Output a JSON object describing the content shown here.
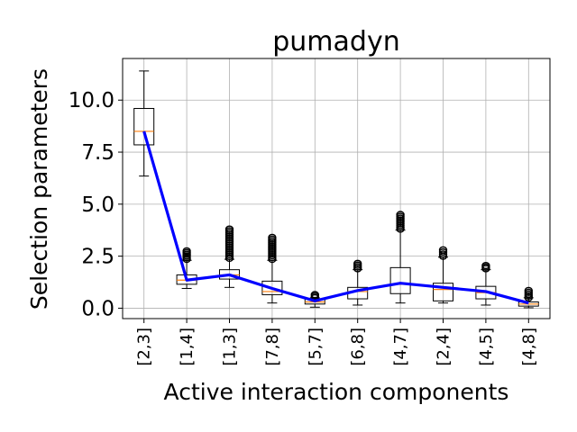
{
  "chart_data": {
    "type": "box",
    "title": "pumadyn",
    "xlabel": "Active interaction components",
    "ylabel": "Selection parameters",
    "categories": [
      "[2,3]",
      "[1,4]",
      "[1,3]",
      "[7,8]",
      "[5,7]",
      "[6,8]",
      "[4,7]",
      "[2,4]",
      "[4,5]",
      "[4,8]"
    ],
    "ylim": [
      -0.5,
      12.0
    ],
    "yticks": [
      0.0,
      2.5,
      5.0,
      7.5,
      10.0
    ],
    "ytick_labels": [
      "0.0",
      "2.5",
      "5.0",
      "7.5",
      "10.0"
    ],
    "grid": true,
    "boxes": [
      {
        "whislo": 6.35,
        "q1": 7.85,
        "med": 8.5,
        "q3": 9.6,
        "whishi": 11.4,
        "fliers_lo": null,
        "fliers_hi": null
      },
      {
        "whislo": 0.95,
        "q1": 1.15,
        "med": 1.35,
        "q3": 1.6,
        "whishi": 2.3,
        "fliers_lo": null,
        "fliers_hi": [
          2.35,
          2.75
        ]
      },
      {
        "whislo": 1.0,
        "q1": 1.4,
        "med": 1.6,
        "q3": 1.85,
        "whishi": 2.35,
        "fliers_lo": null,
        "fliers_hi": [
          2.4,
          3.8
        ]
      },
      {
        "whislo": 0.25,
        "q1": 0.65,
        "med": 0.8,
        "q3": 1.3,
        "whishi": 2.3,
        "fliers_lo": null,
        "fliers_hi": [
          2.35,
          3.4
        ]
      },
      {
        "whislo": 0.05,
        "q1": 0.2,
        "med": 0.3,
        "q3": 0.45,
        "whishi": 0.5,
        "fliers_lo": null,
        "fliers_hi": [
          0.5,
          0.65
        ]
      },
      {
        "whislo": 0.15,
        "q1": 0.45,
        "med": 0.8,
        "q3": 1.0,
        "whishi": 1.85,
        "fliers_lo": null,
        "fliers_hi": [
          1.9,
          2.15
        ]
      },
      {
        "whislo": 0.25,
        "q1": 0.7,
        "med": 1.15,
        "q3": 1.95,
        "whishi": 3.75,
        "fliers_lo": null,
        "fliers_hi": [
          3.8,
          4.5
        ]
      },
      {
        "whislo": 0.25,
        "q1": 0.35,
        "med": 0.9,
        "q3": 1.2,
        "whishi": 2.45,
        "fliers_lo": null,
        "fliers_hi": [
          2.5,
          2.8
        ]
      },
      {
        "whislo": 0.15,
        "q1": 0.45,
        "med": 0.75,
        "q3": 1.05,
        "whishi": 1.85,
        "fliers_lo": null,
        "fliers_hi": [
          1.9,
          2.05
        ]
      },
      {
        "whislo": 0.02,
        "q1": 0.1,
        "med": 0.2,
        "q3": 0.3,
        "whishi": 0.5,
        "fliers_lo": null,
        "fliers_hi": [
          0.5,
          0.85
        ]
      }
    ],
    "mean_line": {
      "color": "#0000ff",
      "values": [
        8.5,
        1.35,
        1.6,
        0.95,
        0.35,
        0.85,
        1.2,
        1.0,
        0.8,
        0.25
      ]
    },
    "colors": {
      "box": "#000000",
      "median": "#ff7f0e",
      "mean_line": "#0000ff",
      "flier": "#000000",
      "grid": "#b0b0b0"
    }
  }
}
